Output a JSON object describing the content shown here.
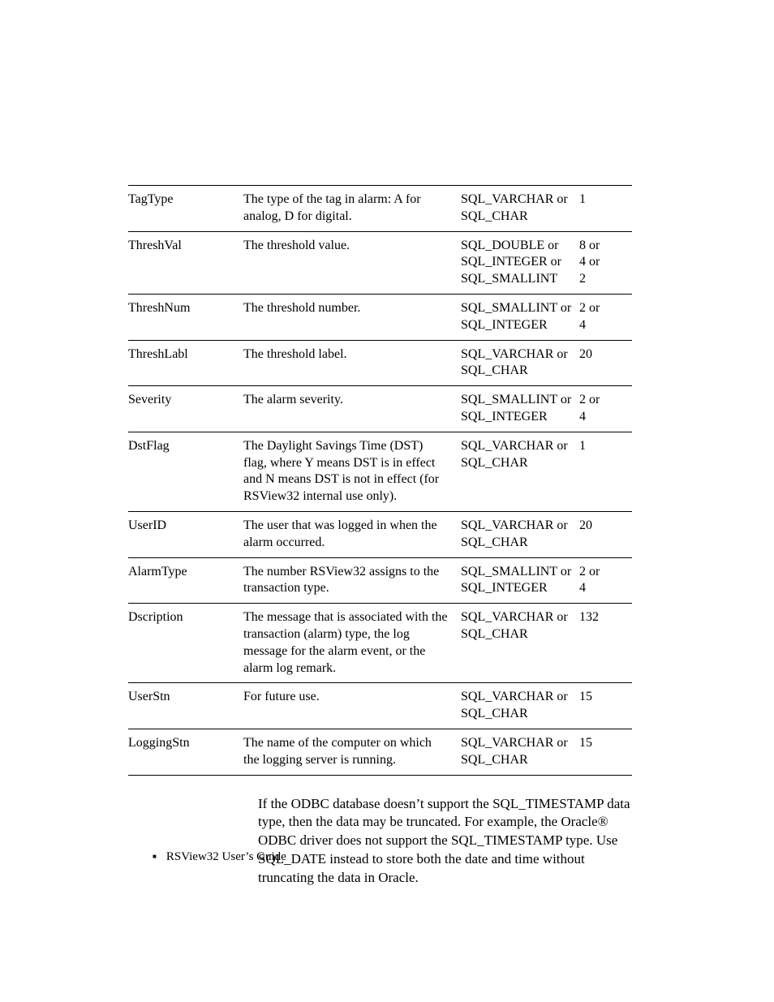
{
  "table": {
    "rows": [
      {
        "name": "TagType",
        "desc": "The type of the tag in alarm: A for analog, D for digital.",
        "type": "SQL_VARCHAR or SQL_CHAR",
        "len": "1"
      },
      {
        "name": "ThreshVal",
        "desc": "The threshold value.",
        "type": "SQL_DOUBLE or SQL_INTEGER or SQL_SMALLINT",
        "len": "8 or\n4 or\n2"
      },
      {
        "name": "ThreshNum",
        "desc": "The threshold number.",
        "type": "SQL_SMALLINT or SQL_INTEGER",
        "len": "2 or\n4"
      },
      {
        "name": "ThreshLabl",
        "desc": "The threshold label.",
        "type": "SQL_VARCHAR or SQL_CHAR",
        "len": "20"
      },
      {
        "name": "Severity",
        "desc": "The alarm severity.",
        "type": "SQL_SMALLINT or SQL_INTEGER",
        "len": "2 or\n4"
      },
      {
        "name": "DstFlag",
        "desc": "The Daylight Savings Time (DST) flag, where Y means DST is in effect and N means DST is not in effect (for RSView32 internal use only).",
        "type": "SQL_VARCHAR or SQL_CHAR",
        "len": "1"
      },
      {
        "name": "UserID",
        "desc": "The user that was logged in when the alarm occurred.",
        "type": "SQL_VARCHAR or SQL_CHAR",
        "len": "20"
      },
      {
        "name": "AlarmType",
        "desc": "The number RSView32 assigns to the transaction type.",
        "type": "SQL_SMALLINT or SQL_INTEGER",
        "len": "2 or\n4"
      },
      {
        "name": "Dscription",
        "desc": "The message that is associated with the transaction (alarm) type, the log message for the alarm event, or the alarm log remark.",
        "type": "SQL_VARCHAR or SQL_CHAR",
        "len": "132"
      },
      {
        "name": "UserStn",
        "desc": "For future use.",
        "type": "SQL_VARCHAR or SQL_CHAR",
        "len": "15"
      },
      {
        "name": "LoggingStn",
        "desc": "The name of the computer on which the logging server is running.",
        "type": "SQL_VARCHAR or SQL_CHAR",
        "len": "15"
      }
    ]
  },
  "paragraph": "If the ODBC database doesn’t support the SQL_TIMESTAMP data type, then the data may be truncated. For example, the Oracle® ODBC driver does not support the SQL_TIMESTAMP type. Use SQL_DATE instead to store both the date and time without truncating the data in Oracle.",
  "footer": "RSView32  User’s Guide",
  "colors": {
    "border": "#000000",
    "text": "#000000",
    "background": "#ffffff"
  },
  "fonts": {
    "body_family": "Garamond, Georgia, serif",
    "body_size_pt": 12
  }
}
